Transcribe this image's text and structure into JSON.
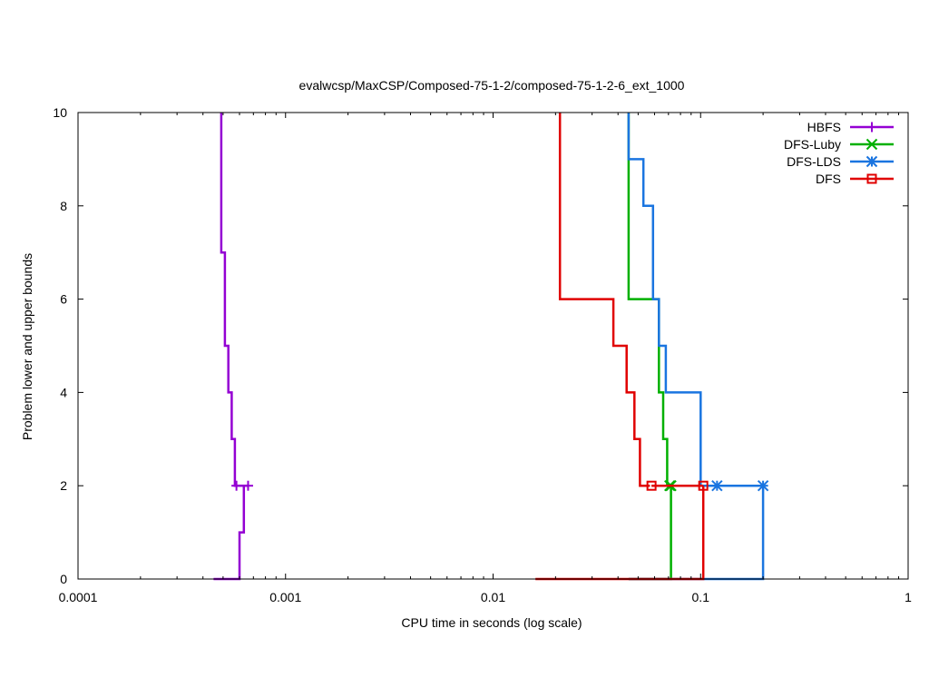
{
  "chart_data": {
    "type": "line",
    "title": "evalwcsp/MaxCSP/Composed-75-1-2/composed-75-1-2-6_ext_1000",
    "xlabel": "CPU time in seconds (log scale)",
    "ylabel": "Problem lower and upper bounds",
    "xscale": "log",
    "xlim": [
      0.0001,
      1
    ],
    "ylim": [
      0,
      10
    ],
    "xticks": [
      {
        "value": 0.0001,
        "label": "0.0001"
      },
      {
        "value": 0.001,
        "label": "0.001"
      },
      {
        "value": 0.01,
        "label": "0.01"
      },
      {
        "value": 0.1,
        "label": "0.1"
      },
      {
        "value": 1,
        "label": "1"
      }
    ],
    "yticks": [
      {
        "value": 0,
        "label": "0"
      },
      {
        "value": 2,
        "label": "2"
      },
      {
        "value": 4,
        "label": "4"
      },
      {
        "value": 6,
        "label": "6"
      },
      {
        "value": 8,
        "label": "8"
      },
      {
        "value": 10,
        "label": "10"
      }
    ],
    "legend_position": "top-right",
    "series": [
      {
        "name": "HBFS",
        "color": "#9400d3",
        "marker": "plus",
        "upper": [
          [
            0.00049,
            10
          ],
          [
            0.00051,
            7
          ],
          [
            0.00053,
            5
          ],
          [
            0.00055,
            4
          ],
          [
            0.00057,
            3
          ],
          [
            0.00058,
            2
          ]
        ],
        "lower": [
          [
            0.00045,
            0
          ],
          [
            0.0006,
            1
          ],
          [
            0.00063,
            2
          ]
        ],
        "points": [
          [
            0.00058,
            2
          ],
          [
            0.00066,
            2
          ]
        ]
      },
      {
        "name": "DFS-Luby",
        "color": "#00b000",
        "marker": "x",
        "upper": [
          [
            0.045,
            10
          ],
          [
            0.045,
            7
          ],
          [
            0.063,
            6
          ],
          [
            0.066,
            4
          ],
          [
            0.069,
            3
          ],
          [
            0.07,
            2
          ]
        ],
        "lower": [
          [
            0.045,
            0
          ],
          [
            0.072,
            2
          ]
        ],
        "points": [
          [
            0.071,
            2
          ],
          [
            0.072,
            2
          ]
        ]
      },
      {
        "name": "DFS-LDS",
        "color": "#1a75e0",
        "marker": "asterisk",
        "upper": [
          [
            0.045,
            10
          ],
          [
            0.053,
            9
          ],
          [
            0.059,
            8
          ],
          [
            0.063,
            6
          ],
          [
            0.068,
            5
          ],
          [
            0.1,
            4
          ],
          [
            0.1,
            3
          ],
          [
            0.12,
            2
          ]
        ],
        "lower": [
          [
            0.045,
            0
          ],
          [
            0.2,
            2
          ]
        ],
        "points": [
          [
            0.12,
            2
          ],
          [
            0.2,
            2
          ]
        ]
      },
      {
        "name": "DFS",
        "color": "#e00000",
        "marker": "square",
        "upper": [
          [
            0.021,
            10
          ],
          [
            0.021,
            7
          ],
          [
            0.038,
            6
          ],
          [
            0.044,
            5
          ],
          [
            0.048,
            4
          ],
          [
            0.051,
            3
          ],
          [
            0.057,
            2
          ]
        ],
        "lower": [
          [
            0.016,
            0
          ],
          [
            0.103,
            2
          ]
        ],
        "points": [
          [
            0.058,
            2
          ],
          [
            0.103,
            2
          ]
        ]
      }
    ]
  }
}
